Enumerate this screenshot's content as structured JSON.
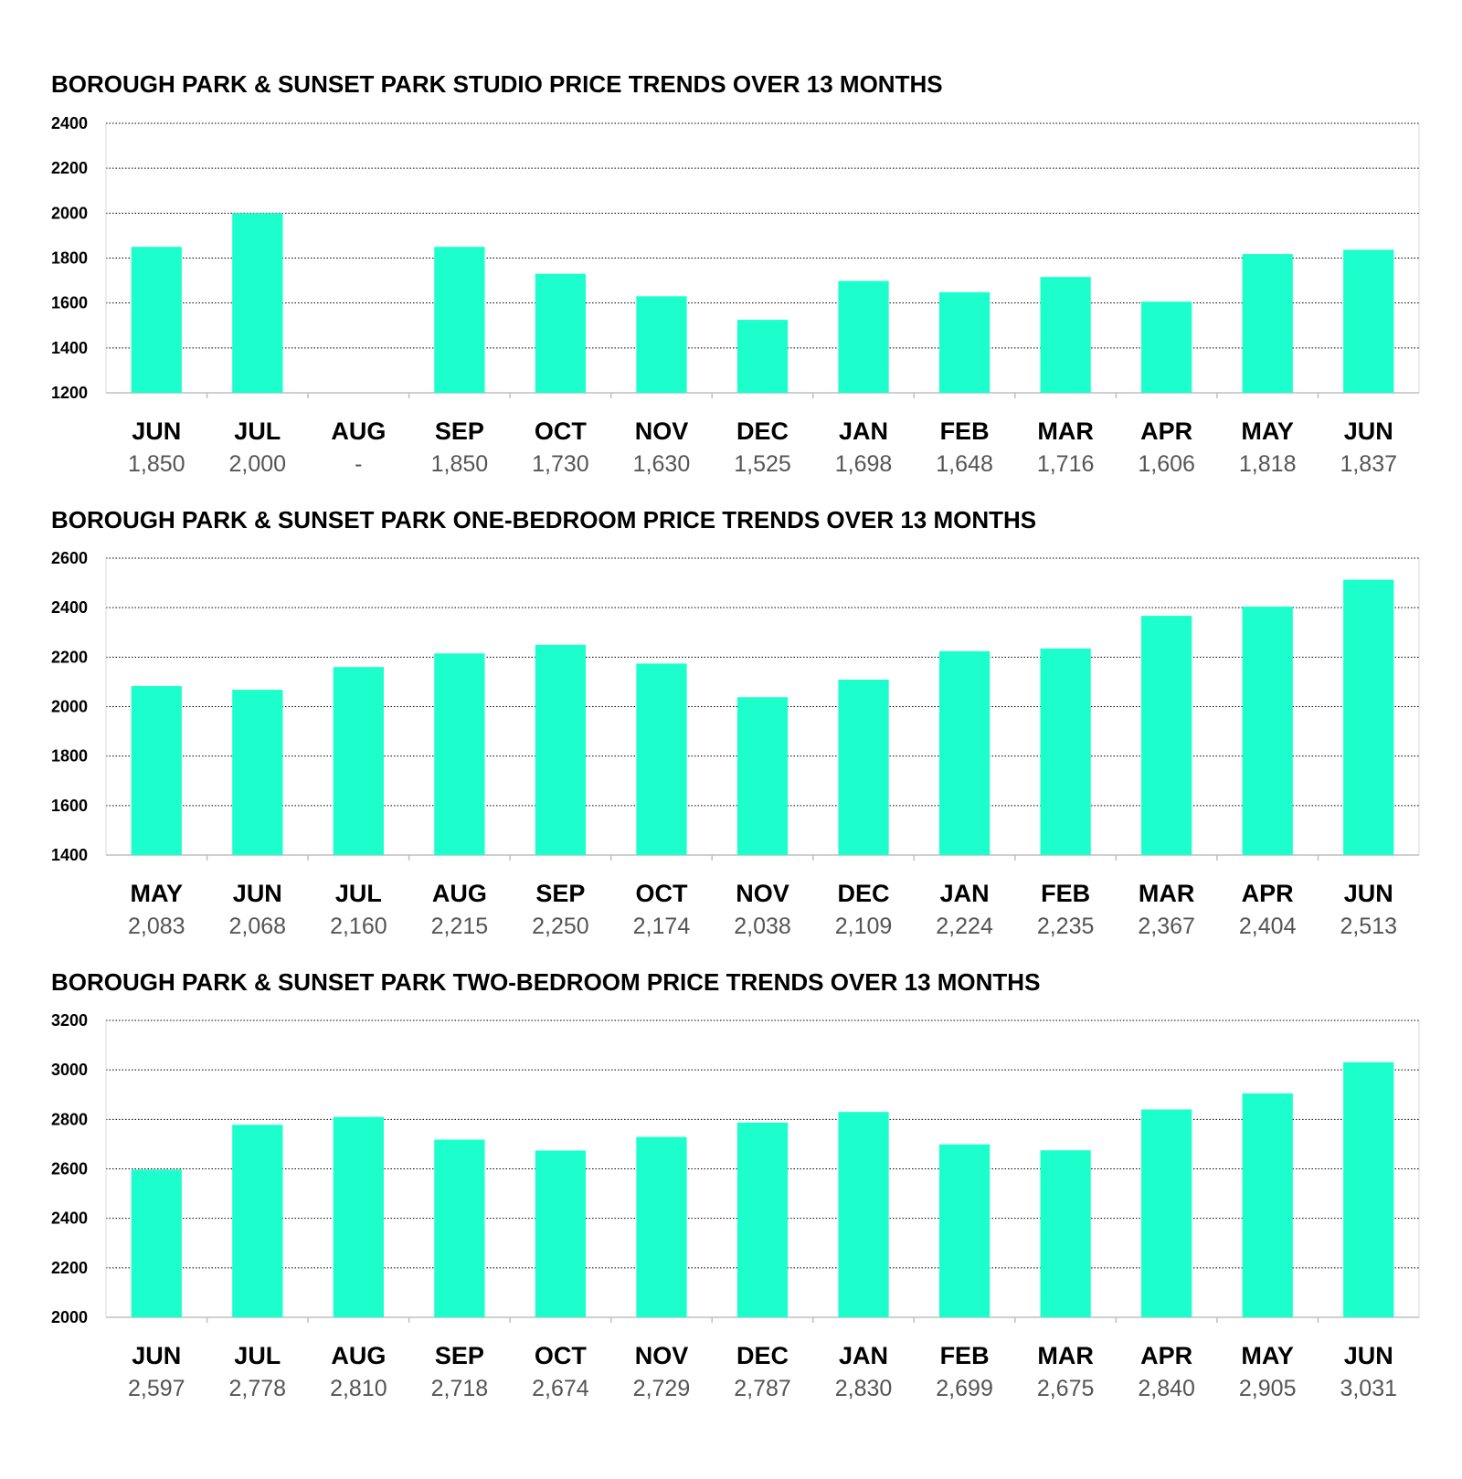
{
  "chart_data": [
    {
      "type": "bar",
      "title": "BOROUGH PARK & SUNSET PARK STUDIO PRICE TRENDS OVER 13 MONTHS",
      "categories": [
        "JUN",
        "JUL",
        "AUG",
        "SEP",
        "OCT",
        "NOV",
        "DEC",
        "JAN",
        "FEB",
        "MAR",
        "APR",
        "MAY",
        "JUN"
      ],
      "values": [
        1850,
        2000,
        null,
        1850,
        1730,
        1630,
        1525,
        1698,
        1648,
        1716,
        1606,
        1818,
        1837
      ],
      "value_labels": [
        "1,850",
        "2,000",
        "-",
        "1,850",
        "1,730",
        "1,630",
        "1,525",
        "1,698",
        "1,648",
        "1,716",
        "1,606",
        "1,818",
        "1,837"
      ],
      "ylim": [
        1200,
        2400
      ],
      "yticks": [
        "1200",
        "1400",
        "1600",
        "1800",
        "2000",
        "2200",
        "2400"
      ],
      "grid": true,
      "bar_color": "#1CFFCC"
    },
    {
      "type": "bar",
      "title": "BOROUGH PARK & SUNSET PARK ONE-BEDROOM PRICE TRENDS OVER 13 MONTHS",
      "categories": [
        "MAY",
        "JUN",
        "JUL",
        "AUG",
        "SEP",
        "OCT",
        "NOV",
        "DEC",
        "JAN",
        "FEB",
        "MAR",
        "APR",
        "JUN"
      ],
      "values": [
        2083,
        2068,
        2160,
        2215,
        2250,
        2174,
        2038,
        2109,
        2224,
        2235,
        2367,
        2404,
        2513
      ],
      "value_labels": [
        "2,083",
        "2,068",
        "2,160",
        "2,215",
        "2,250",
        "2,174",
        "2,038",
        "2,109",
        "2,224",
        "2,235",
        "2,367",
        "2,404",
        "2,513"
      ],
      "ylim": [
        1400,
        2600
      ],
      "yticks": [
        "1400",
        "1600",
        "1800",
        "2000",
        "2200",
        "2400",
        "2600"
      ],
      "grid": true,
      "bar_color": "#1CFFCC"
    },
    {
      "type": "bar",
      "title": "BOROUGH PARK & SUNSET PARK  TWO-BEDROOM PRICE TRENDS OVER 13 MONTHS",
      "categories": [
        "JUN",
        "JUL",
        "AUG",
        "SEP",
        "OCT",
        "NOV",
        "DEC",
        "JAN",
        "FEB",
        "MAR",
        "APR",
        "MAY",
        "JUN"
      ],
      "values": [
        2597,
        2778,
        2810,
        2718,
        2674,
        2729,
        2787,
        2830,
        2699,
        2675,
        2840,
        2905,
        3031
      ],
      "value_labels": [
        "2,597",
        "2,778",
        "2,810",
        "2,718",
        "2,674",
        "2,729",
        "2,787",
        "2,830",
        "2,699",
        "2,675",
        "2,840",
        "2,905",
        "3,031"
      ],
      "ylim": [
        2000,
        3200
      ],
      "yticks": [
        "2000",
        "2200",
        "2400",
        "2600",
        "2800",
        "3000",
        "3200"
      ],
      "grid": true,
      "bar_color": "#1CFFCC"
    }
  ]
}
